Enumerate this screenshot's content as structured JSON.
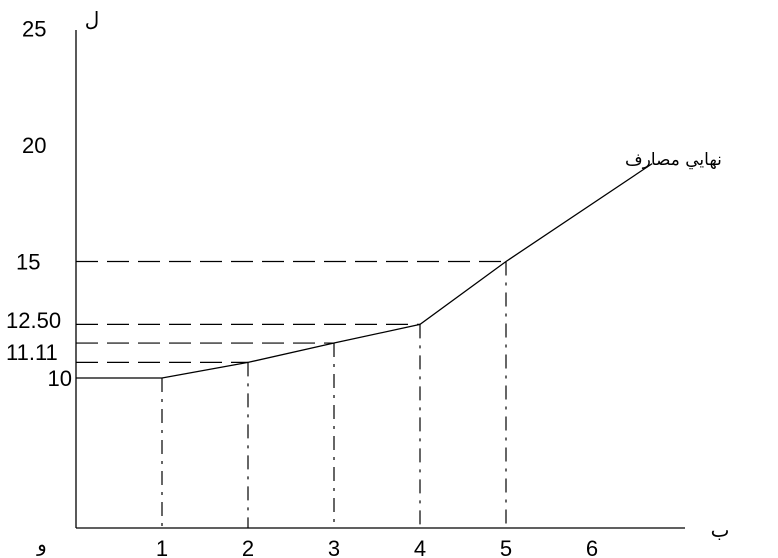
{
  "chart_data": {
    "type": "line",
    "title": "",
    "xlabel": "ب",
    "ylabel": "ل",
    "origin_label": "و",
    "series": [
      {
        "name": "نهایي مصارف",
        "x": [
          0,
          1,
          2,
          3,
          4,
          5,
          6.7
        ],
        "y": [
          10,
          10,
          10.67,
          11.5,
          12.3,
          15,
          19.2
        ]
      }
    ],
    "x_ticks": [
      1,
      2,
      3,
      4,
      5,
      6
    ],
    "x_tick_labels": [
      "1",
      "2",
      "3",
      "4",
      "5",
      "6"
    ],
    "y_ticks": [
      10,
      11.11,
      12.5,
      15,
      20,
      25
    ],
    "y_tick_labels": [
      "10",
      "11.11",
      "12.50",
      "15",
      "20",
      "25"
    ],
    "guides": {
      "horizontal": [
        15,
        12.3,
        11.5,
        10.67
      ],
      "vertical": [
        1,
        2,
        3,
        4,
        5
      ]
    },
    "xlim": [
      0,
      7.2
    ],
    "ylim": [
      4,
      27
    ],
    "grid": false,
    "legend": "none"
  }
}
